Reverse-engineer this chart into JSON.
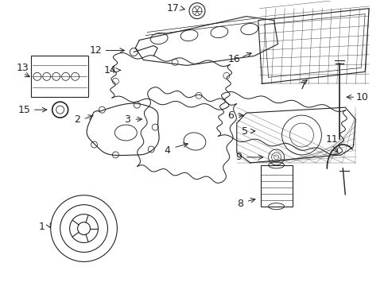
{
  "background_color": "#ffffff",
  "line_color": "#222222",
  "label_color": "#111111",
  "figsize": [
    4.89,
    3.6
  ],
  "dpi": 100
}
